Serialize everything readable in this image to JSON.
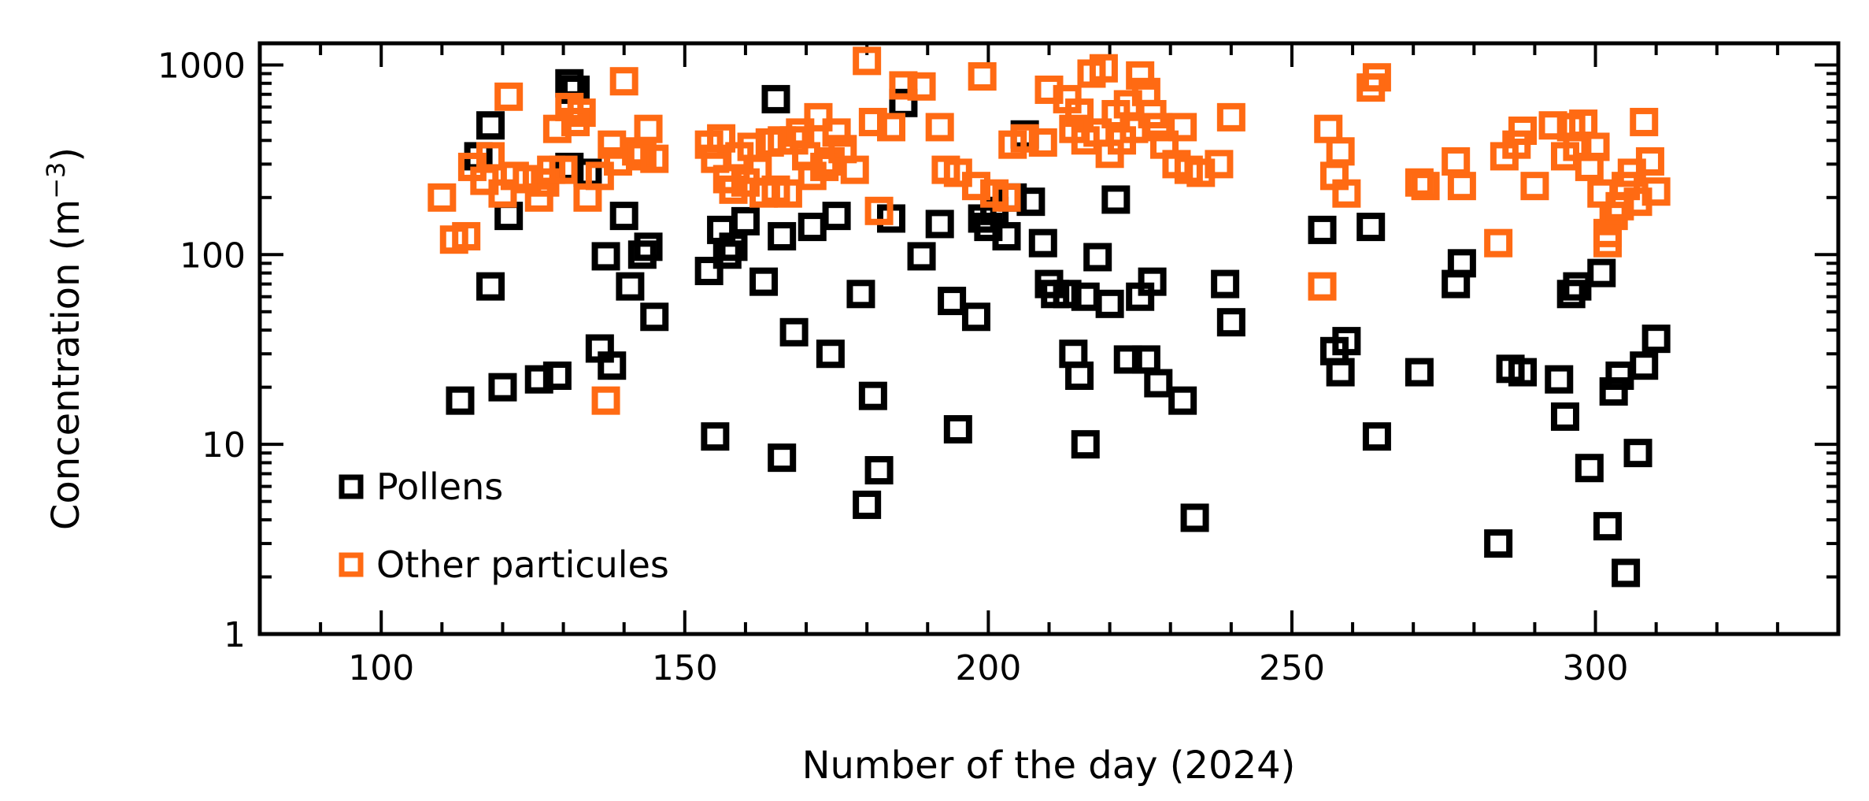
{
  "chart_data": {
    "type": "scatter",
    "title": "",
    "xlabel": "Number of the day (2024)",
    "ylabel": "Concentration (m",
    "ylabel_superscript": "−3",
    "ylabel_close": ")",
    "xlim": [
      80,
      340
    ],
    "ylim": [
      1,
      1300
    ],
    "yscale": "log",
    "x_ticks": [
      100,
      150,
      200,
      250,
      300
    ],
    "x_tick_labels": [
      "100",
      "150",
      "200",
      "250",
      "300"
    ],
    "y_ticks": [
      1,
      10,
      100,
      1000
    ],
    "y_tick_labels": [
      "1",
      "10",
      "100",
      "1000"
    ],
    "grid": false,
    "legend_position": "bottom-left",
    "marker": "open-square",
    "series": [
      {
        "name": "Pollens",
        "color": "#000000",
        "points": [
          [
            113,
            17
          ],
          [
            116,
            330
          ],
          [
            118,
            480
          ],
          [
            118,
            68
          ],
          [
            120,
            20
          ],
          [
            121,
            160
          ],
          [
            126,
            22
          ],
          [
            129,
            23
          ],
          [
            131,
            800
          ],
          [
            131,
            290
          ],
          [
            132,
            740
          ],
          [
            134,
            270
          ],
          [
            136,
            32
          ],
          [
            137,
            98
          ],
          [
            138,
            26
          ],
          [
            140,
            160
          ],
          [
            141,
            68
          ],
          [
            143,
            100
          ],
          [
            144,
            110
          ],
          [
            145,
            47
          ],
          [
            154,
            82
          ],
          [
            155,
            11
          ],
          [
            156,
            135
          ],
          [
            157,
            100
          ],
          [
            158,
            110
          ],
          [
            160,
            150
          ],
          [
            163,
            72
          ],
          [
            165,
            660
          ],
          [
            166,
            8.5
          ],
          [
            166,
            125
          ],
          [
            168,
            39
          ],
          [
            171,
            140
          ],
          [
            174,
            30
          ],
          [
            175,
            160
          ],
          [
            179,
            62
          ],
          [
            180,
            4.8
          ],
          [
            181,
            18
          ],
          [
            182,
            7.3
          ],
          [
            184,
            155
          ],
          [
            186,
            630
          ],
          [
            189,
            98
          ],
          [
            192,
            145
          ],
          [
            194,
            57
          ],
          [
            195,
            12
          ],
          [
            198,
            47
          ],
          [
            199,
            155
          ],
          [
            200,
            140
          ],
          [
            201,
            170
          ],
          [
            203,
            125
          ],
          [
            204,
            200
          ],
          [
            206,
            430
          ],
          [
            207,
            190
          ],
          [
            209,
            115
          ],
          [
            210,
            70
          ],
          [
            211,
            62
          ],
          [
            213,
            62
          ],
          [
            214,
            30
          ],
          [
            215,
            23
          ],
          [
            216,
            60
          ],
          [
            216,
            10
          ],
          [
            218,
            97
          ],
          [
            220,
            55
          ],
          [
            221,
            195
          ],
          [
            223,
            28
          ],
          [
            225,
            60
          ],
          [
            226,
            28
          ],
          [
            227,
            72
          ],
          [
            228,
            21
          ],
          [
            232,
            17
          ],
          [
            234,
            4.1
          ],
          [
            239,
            70
          ],
          [
            240,
            44
          ],
          [
            255,
            135
          ],
          [
            257,
            31
          ],
          [
            258,
            24
          ],
          [
            259,
            35
          ],
          [
            263,
            140
          ],
          [
            264,
            11
          ],
          [
            271,
            24
          ],
          [
            277,
            70
          ],
          [
            278,
            90
          ],
          [
            284,
            3.0
          ],
          [
            286,
            25
          ],
          [
            288,
            24
          ],
          [
            294,
            22
          ],
          [
            295,
            14
          ],
          [
            296,
            62
          ],
          [
            297,
            68
          ],
          [
            299,
            7.5
          ],
          [
            301,
            80
          ],
          [
            302,
            3.7
          ],
          [
            303,
            19
          ],
          [
            304,
            23
          ],
          [
            305,
            2.1
          ],
          [
            307,
            9.0
          ],
          [
            308,
            26
          ],
          [
            310,
            36
          ]
        ]
      },
      {
        "name": "Other particules",
        "color": "#ff6a13",
        "points": [
          [
            110,
            200
          ],
          [
            112,
            120
          ],
          [
            114,
            125
          ],
          [
            115,
            290
          ],
          [
            117,
            245
          ],
          [
            118,
            330
          ],
          [
            120,
            210
          ],
          [
            121,
            680
          ],
          [
            122,
            260
          ],
          [
            124,
            250
          ],
          [
            126,
            200
          ],
          [
            127,
            240
          ],
          [
            128,
            280
          ],
          [
            129,
            460
          ],
          [
            130,
            280
          ],
          [
            131,
            600
          ],
          [
            132,
            500
          ],
          [
            133,
            560
          ],
          [
            134,
            200
          ],
          [
            136,
            260
          ],
          [
            137,
            17
          ],
          [
            138,
            380
          ],
          [
            139,
            310
          ],
          [
            140,
            820
          ],
          [
            142,
            350
          ],
          [
            143,
            330
          ],
          [
            144,
            460
          ],
          [
            145,
            320
          ],
          [
            154,
            380
          ],
          [
            155,
            320
          ],
          [
            156,
            410
          ],
          [
            157,
            250
          ],
          [
            158,
            220
          ],
          [
            159,
            330
          ],
          [
            160,
            240
          ],
          [
            161,
            370
          ],
          [
            162,
            280
          ],
          [
            163,
            210
          ],
          [
            164,
            390
          ],
          [
            165,
            220
          ],
          [
            166,
            400
          ],
          [
            167,
            210
          ],
          [
            168,
            400
          ],
          [
            169,
            440
          ],
          [
            170,
            330
          ],
          [
            171,
            260
          ],
          [
            172,
            530
          ],
          [
            173,
            290
          ],
          [
            174,
            310
          ],
          [
            175,
            440
          ],
          [
            176,
            360
          ],
          [
            178,
            280
          ],
          [
            180,
            1050
          ],
          [
            181,
            500
          ],
          [
            182,
            170
          ],
          [
            184,
            470
          ],
          [
            186,
            780
          ],
          [
            189,
            770
          ],
          [
            192,
            470
          ],
          [
            193,
            280
          ],
          [
            195,
            270
          ],
          [
            198,
            230
          ],
          [
            199,
            870
          ],
          [
            201,
            210
          ],
          [
            203,
            200
          ],
          [
            204,
            380
          ],
          [
            206,
            410
          ],
          [
            209,
            390
          ],
          [
            210,
            740
          ],
          [
            213,
            660
          ],
          [
            214,
            460
          ],
          [
            215,
            560
          ],
          [
            216,
            400
          ],
          [
            217,
            900
          ],
          [
            218,
            440
          ],
          [
            219,
            960
          ],
          [
            220,
            340
          ],
          [
            221,
            550
          ],
          [
            222,
            400
          ],
          [
            223,
            620
          ],
          [
            224,
            460
          ],
          [
            225,
            880
          ],
          [
            226,
            720
          ],
          [
            227,
            550
          ],
          [
            228,
            470
          ],
          [
            229,
            380
          ],
          [
            231,
            300
          ],
          [
            232,
            470
          ],
          [
            233,
            280
          ],
          [
            235,
            270
          ],
          [
            238,
            300
          ],
          [
            240,
            530
          ],
          [
            255,
            68
          ],
          [
            256,
            460
          ],
          [
            257,
            260
          ],
          [
            258,
            350
          ],
          [
            259,
            210
          ],
          [
            263,
            760
          ],
          [
            264,
            860
          ],
          [
            271,
            240
          ],
          [
            272,
            230
          ],
          [
            277,
            310
          ],
          [
            278,
            230
          ],
          [
            284,
            115
          ],
          [
            285,
            330
          ],
          [
            287,
            380
          ],
          [
            288,
            450
          ],
          [
            290,
            230
          ],
          [
            293,
            480
          ],
          [
            295,
            330
          ],
          [
            296,
            470
          ],
          [
            297,
            370
          ],
          [
            298,
            490
          ],
          [
            299,
            290
          ],
          [
            300,
            370
          ],
          [
            301,
            210
          ],
          [
            302,
            115
          ],
          [
            302,
            130
          ],
          [
            303,
            160
          ],
          [
            304,
            180
          ],
          [
            305,
            230
          ],
          [
            306,
            270
          ],
          [
            307,
            190
          ],
          [
            308,
            500
          ],
          [
            309,
            310
          ],
          [
            310,
            215
          ]
        ]
      }
    ]
  }
}
